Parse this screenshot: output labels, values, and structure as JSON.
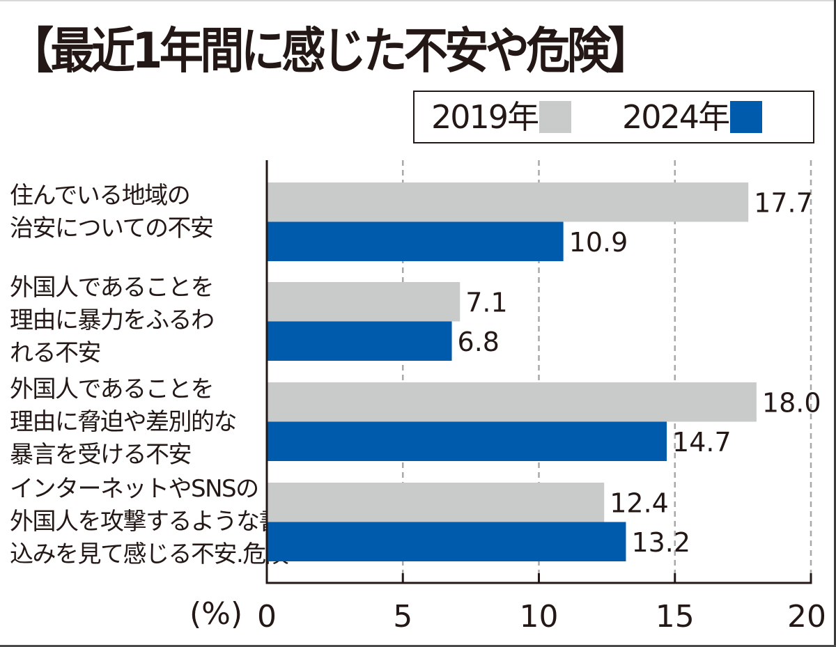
{
  "chart_data": {
    "type": "bar",
    "orientation": "horizontal",
    "title": "【最近1年間に感じた不安や危険】",
    "categories": [
      [
        "住んでいる地域の",
        "治安についての不安"
      ],
      [
        "外国人であることを",
        "理由に暴力をふるわ",
        "れる不安"
      ],
      [
        "外国人であることを",
        "理由に脅迫や差別的な",
        "暴言を受ける不安"
      ],
      [
        "インターネットやSNSの",
        "外国人を攻撃するような書き",
        "込みを見て感じる不安.危険"
      ]
    ],
    "series": [
      {
        "name": "2019年",
        "color": "#c9caca",
        "values": [
          17.7,
          7.1,
          18.0,
          12.4
        ],
        "labels": [
          "17.7",
          "7.1",
          "18.0",
          "12.4"
        ]
      },
      {
        "name": "2024年",
        "color": "#005bac",
        "values": [
          10.9,
          6.8,
          14.7,
          13.2
        ],
        "labels": [
          "10.9",
          "6.8",
          "14.7",
          "13.2"
        ]
      }
    ],
    "xlabel": "(%)",
    "ylabel": "",
    "xlim": [
      0,
      20
    ],
    "xticks": [
      0,
      5,
      10,
      15,
      20
    ],
    "xtick_labels": [
      "0",
      "5",
      "10",
      "15",
      "20"
    ],
    "grid": "vertical dashed",
    "legend_position": "top-right"
  },
  "colors": {
    "text": "#231815",
    "grid": "#a8a8a8",
    "axis": "#231815"
  }
}
